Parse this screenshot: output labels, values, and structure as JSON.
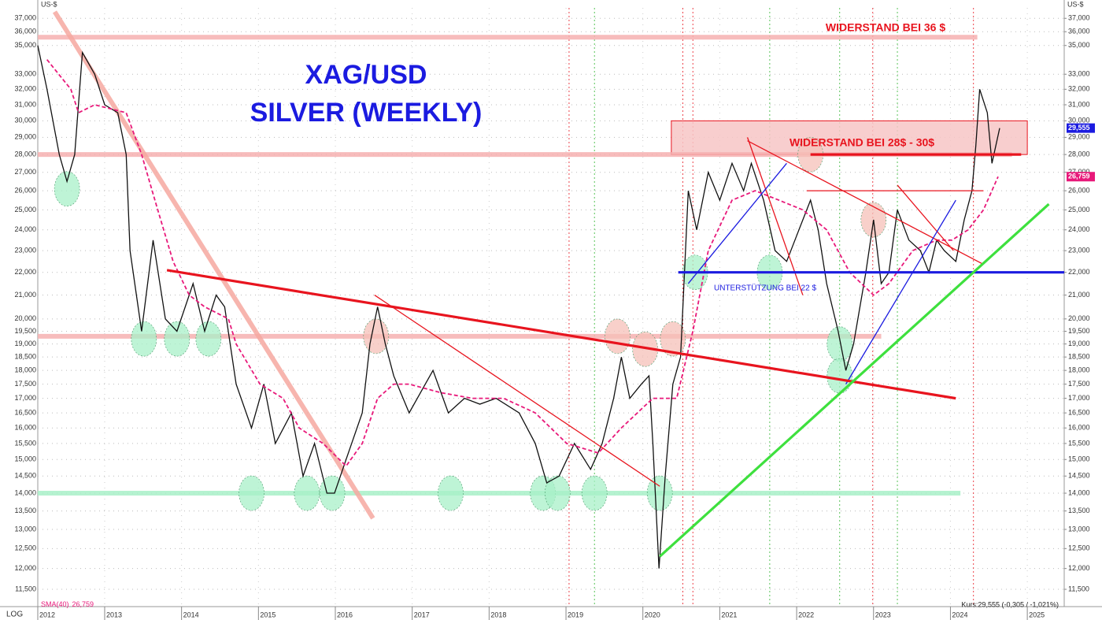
{
  "chart_data": {
    "type": "line",
    "title": "XAG/USD",
    "subtitle": "SILVER (WEEKLY)",
    "unit_label": "US-$",
    "scale_label": "LOG",
    "log_scale": true,
    "grid": true,
    "notes": {
      "resistance_36": "WIDERSTAND BEI 36 $",
      "resistance_28_30": "WIDERSTAND BEI 28$ - 30$",
      "support_22": "UNTERSTÜTZUNG BEI 22 $"
    },
    "quote": "Kurs:29,555 (-0,305 / -1,021%)",
    "xlim": [
      2012.13,
      2025.48
    ],
    "xticks": [
      2012,
      2013,
      2014,
      2015,
      2016,
      2017,
      2018,
      2019,
      2020,
      2021,
      2022,
      2023,
      2024,
      2025
    ],
    "ylim": [
      11.1,
      37.8
    ],
    "yticks": [
      {
        "value": 11.5,
        "label": "11,500"
      },
      {
        "value": 12,
        "label": "12,000"
      },
      {
        "value": 12.5,
        "label": "12,500"
      },
      {
        "value": 13,
        "label": "13,000"
      },
      {
        "value": 13.5,
        "label": "13,500"
      },
      {
        "value": 14,
        "label": "14,000"
      },
      {
        "value": 14.5,
        "label": "14,500"
      },
      {
        "value": 15,
        "label": "15,000"
      },
      {
        "value": 15.5,
        "label": "15,500"
      },
      {
        "value": 16,
        "label": "16,000"
      },
      {
        "value": 16.5,
        "label": "16,500"
      },
      {
        "value": 17,
        "label": "17,000"
      },
      {
        "value": 17.5,
        "label": "17,500"
      },
      {
        "value": 18,
        "label": "18,000"
      },
      {
        "value": 18.5,
        "label": "18,500"
      },
      {
        "value": 19,
        "label": "19,000"
      },
      {
        "value": 19.5,
        "label": "19,500"
      },
      {
        "value": 20,
        "label": "20,000"
      },
      {
        "value": 21,
        "label": "21,000"
      },
      {
        "value": 22,
        "label": "22,000"
      },
      {
        "value": 23,
        "label": "23,000"
      },
      {
        "value": 24,
        "label": "24,000"
      },
      {
        "value": 25,
        "label": "25,000"
      },
      {
        "value": 26,
        "label": "26,000"
      },
      {
        "value": 27,
        "label": "27,000"
      },
      {
        "value": 28,
        "label": "28,000"
      },
      {
        "value": 29,
        "label": "29,000"
      },
      {
        "value": 30,
        "label": "30,000"
      },
      {
        "value": 31,
        "label": "31,000"
      },
      {
        "value": 32,
        "label": "32,000"
      },
      {
        "value": 33,
        "label": "33,000"
      },
      {
        "value": 35,
        "label": "35,000"
      },
      {
        "value": 36,
        "label": "36,000"
      },
      {
        "value": 37,
        "label": "37,000"
      }
    ],
    "series": [
      {
        "name": "XAG/USD",
        "color": "#111111",
        "dash": false,
        "last": {
          "value": 29.555,
          "label": "29,555"
        },
        "tag_color": "#1b1be0",
        "x": [
          2012.13,
          2012.25,
          2012.41,
          2012.51,
          2012.61,
          2012.71,
          2012.87,
          2013.0,
          2013.17,
          2013.28,
          2013.33,
          2013.48,
          2013.63,
          2013.79,
          2013.94,
          2014.15,
          2014.3,
          2014.45,
          2014.56,
          2014.71,
          2014.91,
          2015.07,
          2015.22,
          2015.43,
          2015.58,
          2015.73,
          2015.89,
          2015.99,
          2016.14,
          2016.35,
          2016.45,
          2016.55,
          2016.65,
          2016.76,
          2016.96,
          2017.17,
          2017.27,
          2017.47,
          2017.68,
          2017.88,
          2018.09,
          2018.39,
          2018.6,
          2018.75,
          2018.91,
          2019.11,
          2019.32,
          2019.47,
          2019.62,
          2019.72,
          2019.83,
          2019.98,
          2020.08,
          2020.13,
          2020.21,
          2020.29,
          2020.39,
          2020.49,
          2020.59,
          2020.7,
          2020.85,
          2021.0,
          2021.16,
          2021.31,
          2021.41,
          2021.57,
          2021.72,
          2021.87,
          2022.03,
          2022.18,
          2022.28,
          2022.39,
          2022.54,
          2022.64,
          2022.74,
          2022.9,
          2023.0,
          2023.1,
          2023.2,
          2023.31,
          2023.46,
          2023.61,
          2023.72,
          2023.82,
          2023.92,
          2024.07,
          2024.18,
          2024.28,
          2024.33,
          2024.38,
          2024.48,
          2024.54,
          2024.64
        ],
        "values": [
          35,
          32,
          28,
          26.5,
          28,
          34.5,
          33,
          31,
          30.5,
          28,
          23,
          19.5,
          23.5,
          20,
          19.5,
          21.5,
          19.5,
          21,
          20.5,
          17.5,
          16,
          17.5,
          15.5,
          16.5,
          14.5,
          15.5,
          14,
          14,
          15,
          16.5,
          19,
          20.5,
          19,
          17.8,
          16.5,
          17.5,
          18,
          16.5,
          17,
          16.8,
          17,
          16.5,
          15.5,
          14.3,
          14.5,
          15.5,
          14.7,
          15.5,
          17,
          18.5,
          17,
          17.5,
          17.8,
          15.5,
          12,
          14.5,
          17.5,
          18.5,
          26,
          24,
          27,
          25.5,
          27.5,
          26,
          27.5,
          25.5,
          23,
          22.5,
          24,
          25.5,
          24,
          21.5,
          19.5,
          18,
          19,
          22,
          24.5,
          21.5,
          22,
          25,
          23.5,
          23,
          22,
          23.5,
          23,
          22.5,
          24.5,
          26,
          28.5,
          32,
          30.5,
          27.5,
          29.555
        ]
      },
      {
        "name": "SMA(40)",
        "color": "#e8197a",
        "dash": true,
        "last": {
          "value": 26.759,
          "label": "26,759"
        },
        "tag_color": "#e8197a",
        "x": [
          2012.25,
          2012.56,
          2012.66,
          2012.87,
          2013.28,
          2013.48,
          2013.69,
          2013.89,
          2014.1,
          2014.3,
          2014.61,
          2014.71,
          2015.02,
          2015.32,
          2015.53,
          2015.84,
          2016.14,
          2016.35,
          2016.55,
          2016.76,
          2016.96,
          2017.37,
          2017.78,
          2018.19,
          2018.6,
          2019.01,
          2019.42,
          2019.72,
          2020.13,
          2020.44,
          2020.65,
          2020.85,
          2021.16,
          2021.46,
          2021.77,
          2022.08,
          2022.39,
          2022.69,
          2023.0,
          2023.2,
          2023.51,
          2023.82,
          2024.02,
          2024.23,
          2024.43,
          2024.62
        ],
        "values": [
          34,
          32,
          30.5,
          31,
          30.5,
          28,
          25,
          22.5,
          21,
          20.5,
          20,
          19,
          17.5,
          17,
          16,
          15.5,
          14.8,
          15.5,
          17,
          17.5,
          17.5,
          17.2,
          17,
          17,
          16.5,
          15.5,
          15.2,
          16,
          17,
          17,
          19.5,
          23,
          25.5,
          26,
          25.5,
          25,
          24,
          22,
          21,
          21.5,
          23,
          23.5,
          23.5,
          24,
          25,
          26.759
        ]
      }
    ],
    "zones": [
      {
        "x": [
          2020.37,
          2025.0
        ],
        "y": [
          28,
          30
        ],
        "color": "#f7c6c6",
        "edge": "#e8141e"
      }
    ],
    "bands": [
      {
        "x": [
          2012.13,
          2024.35
        ],
        "y": [
          35.6,
          35.6
        ],
        "color": "#f6b0b0"
      },
      {
        "x": [
          2012.13,
          2024.8
        ],
        "y": [
          28,
          28
        ],
        "color": "#f6b0b0"
      },
      {
        "x": [
          2012.13,
          2023.1
        ],
        "y": [
          19.3,
          19.3
        ],
        "color": "#f6b0b0"
      },
      {
        "x": [
          2012.13,
          2024.13
        ],
        "y": [
          14,
          14
        ],
        "color": "#a8f0c8"
      },
      {
        "x": [
          2012.35,
          2016.49
        ],
        "y": [
          37.5,
          13.3
        ],
        "color": "#f6a8a0"
      }
    ],
    "trend_lines": [
      {
        "x": [
          2013.81,
          2024.07
        ],
        "y": [
          22.1,
          17
        ],
        "color": "#e8141e"
      },
      {
        "x": [
          2022.18,
          2024.92
        ],
        "y": [
          28,
          28
        ],
        "color": "#e8141e"
      },
      {
        "x": [
          2020.46,
          2025.48
        ],
        "y": [
          22,
          22
        ],
        "color": "#1b1be0"
      },
      {
        "x": [
          2020.22,
          2025.28
        ],
        "y": [
          12.3,
          25.3
        ],
        "color": "#3ee03e"
      }
    ],
    "thin_lines": [
      {
        "x": [
          2016.51,
          2020.22
        ],
        "y": [
          21,
          14.2
        ],
        "color": "#e8141e"
      },
      {
        "x": [
          2021.36,
          2024.41
        ],
        "y": [
          28.8,
          22.4
        ],
        "color": "#e8141e"
      },
      {
        "x": [
          2021.36,
          2022.08
        ],
        "y": [
          29,
          21
        ],
        "color": "#e8141e"
      },
      {
        "x": [
          2022.13,
          2024.43
        ],
        "y": [
          26,
          26
        ],
        "color": "#e8141e"
      },
      {
        "x": [
          2023.31,
          2024.04
        ],
        "y": [
          26.3,
          23
        ],
        "color": "#e8141e"
      },
      {
        "x": [
          2020.59,
          2021.87
        ],
        "y": [
          21.5,
          27.5
        ],
        "color": "#1b1be0"
      },
      {
        "x": [
          2022.64,
          2024.07
        ],
        "y": [
          17.5,
          25.5
        ],
        "color": "#1b1be0"
      }
    ],
    "event_lines": [
      {
        "x": 2019.04,
        "color": "#e8141e"
      },
      {
        "x": 2020.52,
        "color": "#e8141e"
      },
      {
        "x": 2020.65,
        "color": "#e8141e"
      },
      {
        "x": 2022.99,
        "color": "#e8141e"
      },
      {
        "x": 2024.3,
        "color": "#e8141e"
      },
      {
        "x": 2019.37,
        "color": "#2fb52f"
      },
      {
        "x": 2021.65,
        "color": "#2fb52f"
      },
      {
        "x": 2022.56,
        "color": "#2fb52f"
      },
      {
        "x": 2023.31,
        "color": "#2fb52f"
      }
    ],
    "highlights": [
      {
        "x": 2012.51,
        "y": 26.1,
        "color": "#a8f0c8"
      },
      {
        "x": 2013.51,
        "y": 19.2,
        "color": "#a8f0c8"
      },
      {
        "x": 2013.94,
        "y": 19.2,
        "color": "#a8f0c8"
      },
      {
        "x": 2014.35,
        "y": 19.2,
        "color": "#a8f0c8"
      },
      {
        "x": 2014.91,
        "y": 14,
        "color": "#a8f0c8"
      },
      {
        "x": 2015.63,
        "y": 14,
        "color": "#a8f0c8"
      },
      {
        "x": 2015.96,
        "y": 14,
        "color": "#a8f0c8"
      },
      {
        "x": 2017.5,
        "y": 14,
        "color": "#a8f0c8"
      },
      {
        "x": 2018.7,
        "y": 14,
        "color": "#a8f0c8"
      },
      {
        "x": 2018.89,
        "y": 14,
        "color": "#a8f0c8"
      },
      {
        "x": 2019.37,
        "y": 14,
        "color": "#a8f0c8"
      },
      {
        "x": 2020.22,
        "y": 14,
        "color": "#a8f0c8"
      },
      {
        "x": 2020.68,
        "y": 22,
        "color": "#a8f0c8"
      },
      {
        "x": 2021.65,
        "y": 22,
        "color": "#a8f0c8"
      },
      {
        "x": 2022.56,
        "y": 19,
        "color": "#a8f0c8"
      },
      {
        "x": 2022.56,
        "y": 17.8,
        "color": "#a8f0c8"
      },
      {
        "x": 2016.53,
        "y": 19.3,
        "color": "#f6c0b8"
      },
      {
        "x": 2019.67,
        "y": 19.3,
        "color": "#f6c0b8"
      },
      {
        "x": 2020.03,
        "y": 18.8,
        "color": "#f6c0b8"
      },
      {
        "x": 2020.39,
        "y": 19.2,
        "color": "#f6c0b8"
      },
      {
        "x": 2022.18,
        "y": 28,
        "color": "#f6c0b8"
      },
      {
        "x": 2023.0,
        "y": 24.5,
        "color": "#f6c0b8"
      }
    ]
  }
}
